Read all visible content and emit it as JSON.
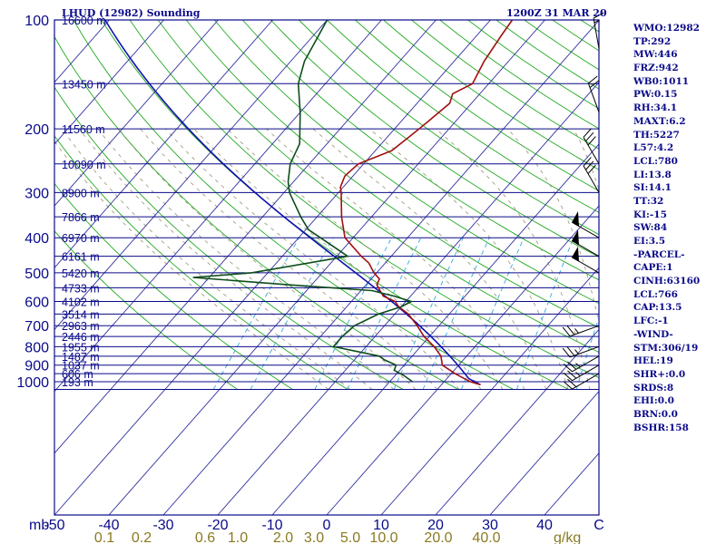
{
  "header": {
    "station": "LHUD (12982) Sounding",
    "time": "1200Z 31 MAR 20"
  },
  "stats": [
    "WMO:12982",
    "TP:292",
    "MW:446",
    "FRZ:942",
    "WB0:1011",
    "PW:0.15",
    "RH:34.1",
    "MAXT:6.2",
    "TH:5227",
    "L57:4.2",
    "LCL:780",
    "LI:13.8",
    "SI:14.1",
    "TT:32",
    "KI:-15",
    "SW:84",
    "EI:3.5",
    "-PARCEL-",
    "CAPE:1",
    "CINH:63160",
    "LCL:766",
    "CAP:13.5",
    "LFC:-1",
    "-WIND-",
    "STM:306/19",
    "HEL:19",
    "SHR+:0.0",
    "SRDS:8",
    "EHI:0.0",
    "BRN:0.0",
    "BSHR:158"
  ],
  "colors": {
    "pressure_lines": "#0a0a8a",
    "temp_lines": "#3030a0",
    "dry_adiabats": "#22aa22",
    "moist_adiabats": "#9a9070",
    "mixing_ratio": "#33aadd",
    "temperature_profile": "#a01010",
    "dewpoint_profile": "#0d4d1a",
    "parcel_path": "#1010b0",
    "text": "#0a0a8a",
    "bottom_labels": "#8a7a20"
  },
  "chart_data": {
    "type": "skew-t",
    "pressure_unit": "mb",
    "pressure_ticks": [
      {
        "p": 100,
        "label": "100"
      },
      {
        "p": 200,
        "label": "200"
      },
      {
        "p": 300,
        "label": "300"
      },
      {
        "p": 400,
        "label": "400"
      },
      {
        "p": 500,
        "label": "500"
      },
      {
        "p": 600,
        "label": "600"
      },
      {
        "p": 700,
        "label": "700"
      },
      {
        "p": 800,
        "label": "800"
      },
      {
        "p": 900,
        "label": "900"
      },
      {
        "p": 1000,
        "label": "1000"
      }
    ],
    "pressure_unit_label": "mb",
    "temperature_ticks": [
      {
        "t": -50,
        "label": "-50"
      },
      {
        "t": -40,
        "label": "-40"
      },
      {
        "t": -30,
        "label": "-30"
      },
      {
        "t": -20,
        "label": "-20"
      },
      {
        "t": -10,
        "label": "-10"
      },
      {
        "t": 0,
        "label": "0"
      },
      {
        "t": 10,
        "label": "10"
      },
      {
        "t": 20,
        "label": "20"
      },
      {
        "t": 30,
        "label": "30"
      },
      {
        "t": 40,
        "label": "40"
      }
    ],
    "temperature_unit_label": "C",
    "mixing_ratio_ticks": [
      {
        "w": 0.1,
        "label": "0.1"
      },
      {
        "w": 0.2,
        "label": "0.2"
      },
      {
        "w": 0.6,
        "label": "0.6"
      },
      {
        "w": 1.0,
        "label": "1.0"
      },
      {
        "w": 2.0,
        "label": "2.0"
      },
      {
        "w": 3.0,
        "label": "3.0"
      },
      {
        "w": 5.0,
        "label": "5.0"
      },
      {
        "w": 10.0,
        "label": "10.0"
      },
      {
        "w": 20.0,
        "label": "20.0"
      },
      {
        "w": 40.0,
        "label": "40.0"
      }
    ],
    "mixing_ratio_unit": "g/kg",
    "heights": [
      {
        "p": 100,
        "label": "16600 m"
      },
      {
        "p": 150,
        "label": "13450 m"
      },
      {
        "p": 200,
        "label": "11560 m"
      },
      {
        "p": 250,
        "label": "10090 m"
      },
      {
        "p": 300,
        "label": "8900 m"
      },
      {
        "p": 350,
        "label": "7866 m"
      },
      {
        "p": 400,
        "label": "6970 m"
      },
      {
        "p": 450,
        "label": "6161 m"
      },
      {
        "p": 500,
        "label": "5420 m"
      },
      {
        "p": 550,
        "label": "4733 m"
      },
      {
        "p": 600,
        "label": "4102 m"
      },
      {
        "p": 650,
        "label": "3514 m"
      },
      {
        "p": 700,
        "label": "2963 m"
      },
      {
        "p": 750,
        "label": "2446 m"
      },
      {
        "p": 800,
        "label": "1955 m"
      },
      {
        "p": 850,
        "label": "1487 m"
      },
      {
        "p": 900,
        "label": "1037 m"
      },
      {
        "p": 950,
        "label": "606 m"
      },
      {
        "p": 1000,
        "label": "193 m"
      }
    ],
    "temperature_profile": [
      [
        1020,
        7.2
      ],
      [
        1000,
        4.8
      ],
      [
        950,
        0.7
      ],
      [
        900,
        -3.0
      ],
      [
        850,
        -4.7
      ],
      [
        800,
        -7.5
      ],
      [
        750,
        -11.0
      ],
      [
        700,
        -14.0
      ],
      [
        650,
        -17.5
      ],
      [
        620,
        -20.5
      ],
      [
        600,
        -22.0
      ],
      [
        580,
        -25.0
      ],
      [
        560,
        -26.5
      ],
      [
        540,
        -28.0
      ],
      [
        520,
        -28.5
      ],
      [
        500,
        -30.5
      ],
      [
        470,
        -33.0
      ],
      [
        450,
        -35.5
      ],
      [
        420,
        -39.0
      ],
      [
        400,
        -41.5
      ],
      [
        350,
        -45.5
      ],
      [
        300,
        -49.5
      ],
      [
        290,
        -50.5
      ],
      [
        270,
        -51.5
      ],
      [
        250,
        -51.0
      ],
      [
        230,
        -47.0
      ],
      [
        210,
        -46.0
      ],
      [
        200,
        -45.5
      ],
      [
        190,
        -45.0
      ],
      [
        170,
        -44.0
      ],
      [
        160,
        -45.0
      ],
      [
        150,
        -43.0
      ],
      [
        130,
        -44.5
      ],
      [
        110,
        -45.5
      ],
      [
        100,
        -46.0
      ]
    ],
    "dewpoint_profile": [
      [
        1000,
        -5.8
      ],
      [
        960,
        -8.5
      ],
      [
        930,
        -11.0
      ],
      [
        900,
        -11.5
      ],
      [
        870,
        -14.5
      ],
      [
        850,
        -16.0
      ],
      [
        800,
        -26.0
      ],
      [
        750,
        -26.0
      ],
      [
        700,
        -25.5
      ],
      [
        650,
        -23.0
      ],
      [
        620,
        -20.0
      ],
      [
        600,
        -19.0
      ],
      [
        580,
        -23.0
      ],
      [
        560,
        -28.0
      ],
      [
        540,
        -44.0
      ],
      [
        515,
        -63.0
      ],
      [
        500,
        -53.0
      ],
      [
        450,
        -38.0
      ],
      [
        400,
        -46.0
      ],
      [
        380,
        -49.5
      ],
      [
        350,
        -53.0
      ],
      [
        300,
        -59.0
      ],
      [
        280,
        -61.0
      ],
      [
        250,
        -63.5
      ],
      [
        220,
        -65.0
      ],
      [
        180,
        -70.0
      ],
      [
        150,
        -75.0
      ],
      [
        130,
        -77.5
      ],
      [
        100,
        -80.0
      ]
    ],
    "winds": [
      {
        "p": 950,
        "dir": 240,
        "spd": 20
      },
      {
        "p": 900,
        "dir": 240,
        "spd": 25
      },
      {
        "p": 850,
        "dir": 240,
        "spd": 25
      },
      {
        "p": 800,
        "dir": 250,
        "spd": 25
      },
      {
        "p": 700,
        "dir": 250,
        "spd": 25
      },
      {
        "p": 500,
        "dir": 300,
        "spd": 50
      },
      {
        "p": 450,
        "dir": 300,
        "spd": 50
      },
      {
        "p": 400,
        "dir": 300,
        "spd": 50
      },
      {
        "p": 300,
        "dir": 330,
        "spd": 30
      },
      {
        "p": 250,
        "dir": 330,
        "spd": 30
      },
      {
        "p": 180,
        "dir": 340,
        "spd": 20
      },
      {
        "p": 120,
        "dir": 350,
        "spd": 15
      }
    ],
    "pressure_range": [
      100,
      1050
    ],
    "temperature_range": [
      -50,
      50
    ],
    "grid": true
  }
}
